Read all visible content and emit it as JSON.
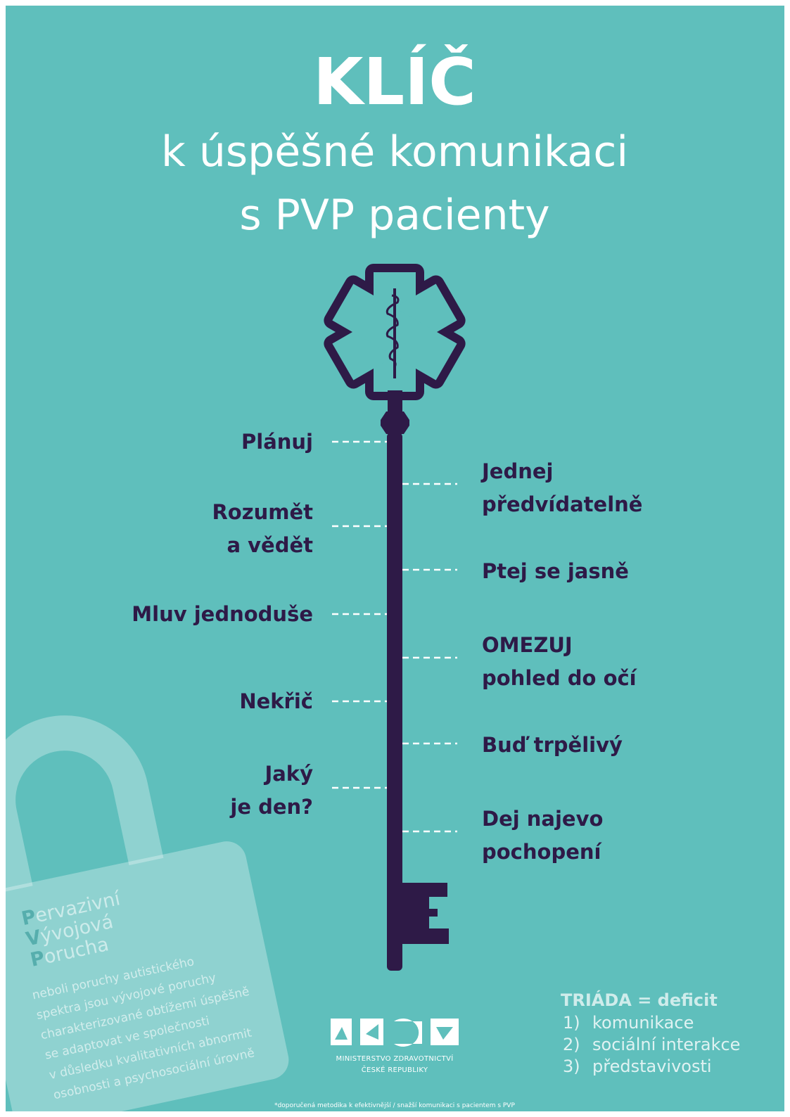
{
  "header": {
    "title": "KLÍČ",
    "subtitle_lines": [
      "k úspěšné komunikaci",
      "s PVP pacienty"
    ]
  },
  "left_steps": [
    {
      "lines": [
        "Plánuj"
      ]
    },
    {
      "lines": [
        "Rozumět",
        "a vědět"
      ]
    },
    {
      "lines": [
        "Mluv jednoduše"
      ]
    },
    {
      "lines": [
        "Nekřič"
      ]
    },
    {
      "lines": [
        "Jaký",
        "je den?"
      ]
    }
  ],
  "right_steps": [
    {
      "lines": [
        "Jednej",
        "předvídatelně"
      ]
    },
    {
      "lines": [
        "Ptej se jasně"
      ]
    },
    {
      "lines": [
        "OMEZUJ",
        "pohled do očí"
      ]
    },
    {
      "lines": [
        "Buď trpělivý"
      ]
    },
    {
      "lines": [
        "Dej najevo",
        "pochopení"
      ]
    }
  ],
  "lock": {
    "heading": [
      {
        "initial": "P",
        "rest": "ervazivní"
      },
      {
        "initial": "V",
        "rest": "ývojová"
      },
      {
        "initial": "P",
        "rest": "orucha"
      }
    ],
    "description": [
      "neboli poruchy autistického",
      "spektra jsou vývojové poruchy",
      "charakterizované obtížemi úspěšně",
      "se adaptovat ve společnosti",
      "v důsledku kvalitativních abnormit",
      "osobnosti a psychosociální úrovně"
    ]
  },
  "triada": {
    "heading": "TRIÁDA = deficit",
    "items": [
      {
        "number": "1)",
        "text": "komunikace"
      },
      {
        "number": "2)",
        "text": "sociální interakce"
      },
      {
        "number": "3)",
        "text": "představivosti"
      }
    ]
  },
  "ministry": [
    "MINISTERSTVO ZDRAVOTNICTVÍ",
    "ČESKÉ REPUBLIKY"
  ],
  "footnote": "*doporučená metodika k efektivnější / snažší komunikaci s pacientem s PVP"
}
